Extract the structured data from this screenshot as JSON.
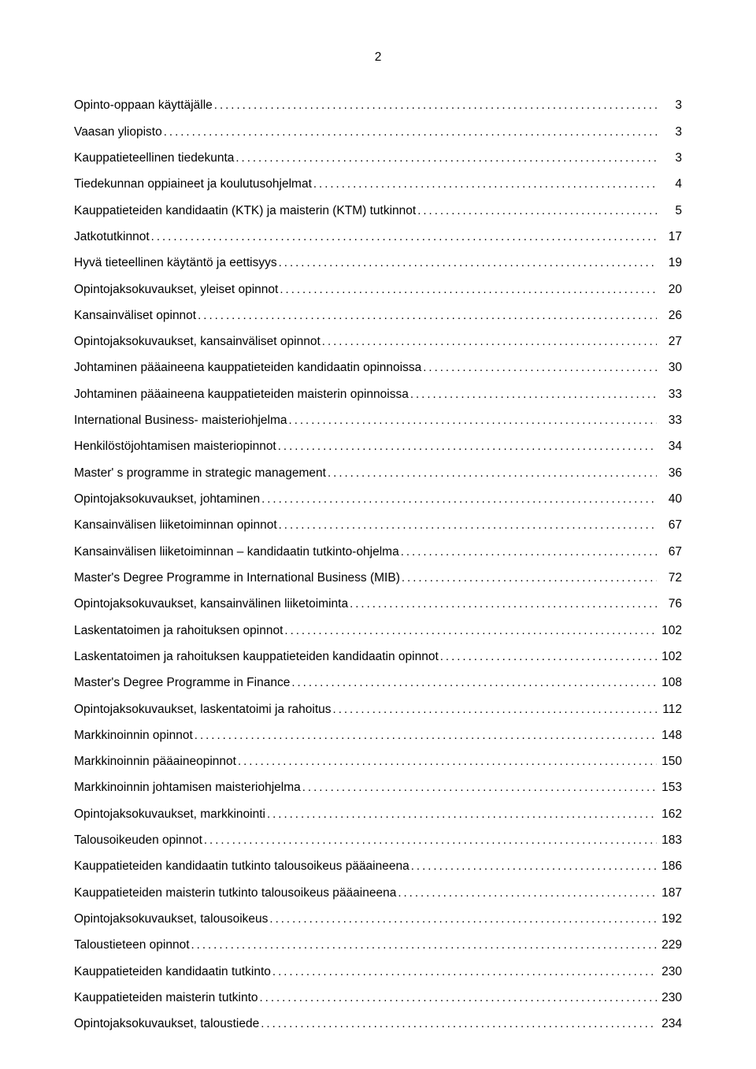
{
  "page_number": "2",
  "text_color": "#000000",
  "background_color": "#ffffff",
  "font_size_pt": 11,
  "toc": [
    {
      "title": "Opinto-oppaan käyttäjälle",
      "page": "3"
    },
    {
      "title": "Vaasan yliopisto",
      "page": "3"
    },
    {
      "title": "Kauppatieteellinen tiedekunta",
      "page": "3"
    },
    {
      "title": "Tiedekunnan oppiaineet ja koulutusohjelmat",
      "page": "4"
    },
    {
      "title": "Kauppatieteiden kandidaatin (KTK) ja maisterin (KTM) tutkinnot",
      "page": "5"
    },
    {
      "title": "Jatkotutkinnot",
      "page": "17"
    },
    {
      "title": "Hyvä tieteellinen käytäntö ja eettisyys",
      "page": "19"
    },
    {
      "title": "Opintojaksokuvaukset, yleiset opinnot",
      "page": "20"
    },
    {
      "title": "Kansainväliset opinnot",
      "page": "26"
    },
    {
      "title": "Opintojaksokuvaukset, kansainväliset opinnot",
      "page": "27"
    },
    {
      "title": "Johtaminen pääaineena kauppatieteiden kandidaatin opinnoissa",
      "page": "30"
    },
    {
      "title": "Johtaminen pääaineena kauppatieteiden maisterin opinnoissa",
      "page": "33"
    },
    {
      "title": "International Business- maisteriohjelma",
      "page": "33"
    },
    {
      "title": "Henkilöstöjohtamisen maisteriopinnot",
      "page": "34"
    },
    {
      "title": "Master' s programme in strategic management",
      "page": "36"
    },
    {
      "title": "Opintojaksokuvaukset,  johtaminen",
      "page": "40"
    },
    {
      "title": "Kansainvälisen liiketoiminnan opinnot",
      "page": "67"
    },
    {
      "title": "Kansainvälisen liiketoiminnan – kandidaatin tutkinto-ohjelma",
      "page": "67"
    },
    {
      "title": "Master's Degree Programme in International Business (MIB)",
      "page": "72"
    },
    {
      "title": "Opintojaksokuvaukset, kansainvälinen liiketoiminta",
      "page": "76"
    },
    {
      "title": "Laskentatoimen ja rahoituksen opinnot",
      "page": "102"
    },
    {
      "title": "Laskentatoimen ja rahoituksen kauppatieteiden kandidaatin opinnot",
      "page": "102"
    },
    {
      "title": "Master's Degree Programme in Finance",
      "page": "108"
    },
    {
      "title": "Opintojaksokuvaukset, laskentatoimi ja rahoitus",
      "page": "112"
    },
    {
      "title": "Markkinoinnin opinnot",
      "page": "148"
    },
    {
      "title": "Markkinoinnin pääaineopinnot",
      "page": "150"
    },
    {
      "title": "Markkinoinnin johtamisen maisteriohjelma",
      "page": "153"
    },
    {
      "title": "Opintojaksokuvaukset, markkinointi",
      "page": "162"
    },
    {
      "title": "Talousoikeuden opinnot",
      "page": "183"
    },
    {
      "title": "Kauppatieteiden kandidaatin tutkinto talousoikeus pääaineena",
      "page": "186"
    },
    {
      "title": "Kauppatieteiden maisterin tutkinto talousoikeus pääaineena",
      "page": "187"
    },
    {
      "title": "Opintojaksokuvaukset, talousoikeus",
      "page": "192"
    },
    {
      "title": "Taloustieteen opinnot",
      "page": "229"
    },
    {
      "title": "Kauppatieteiden kandidaatin tutkinto",
      "page": "230"
    },
    {
      "title": "Kauppatieteiden maisterin tutkinto",
      "page": "230"
    },
    {
      "title": "Opintojaksokuvaukset, taloustiede",
      "page": "234"
    }
  ]
}
